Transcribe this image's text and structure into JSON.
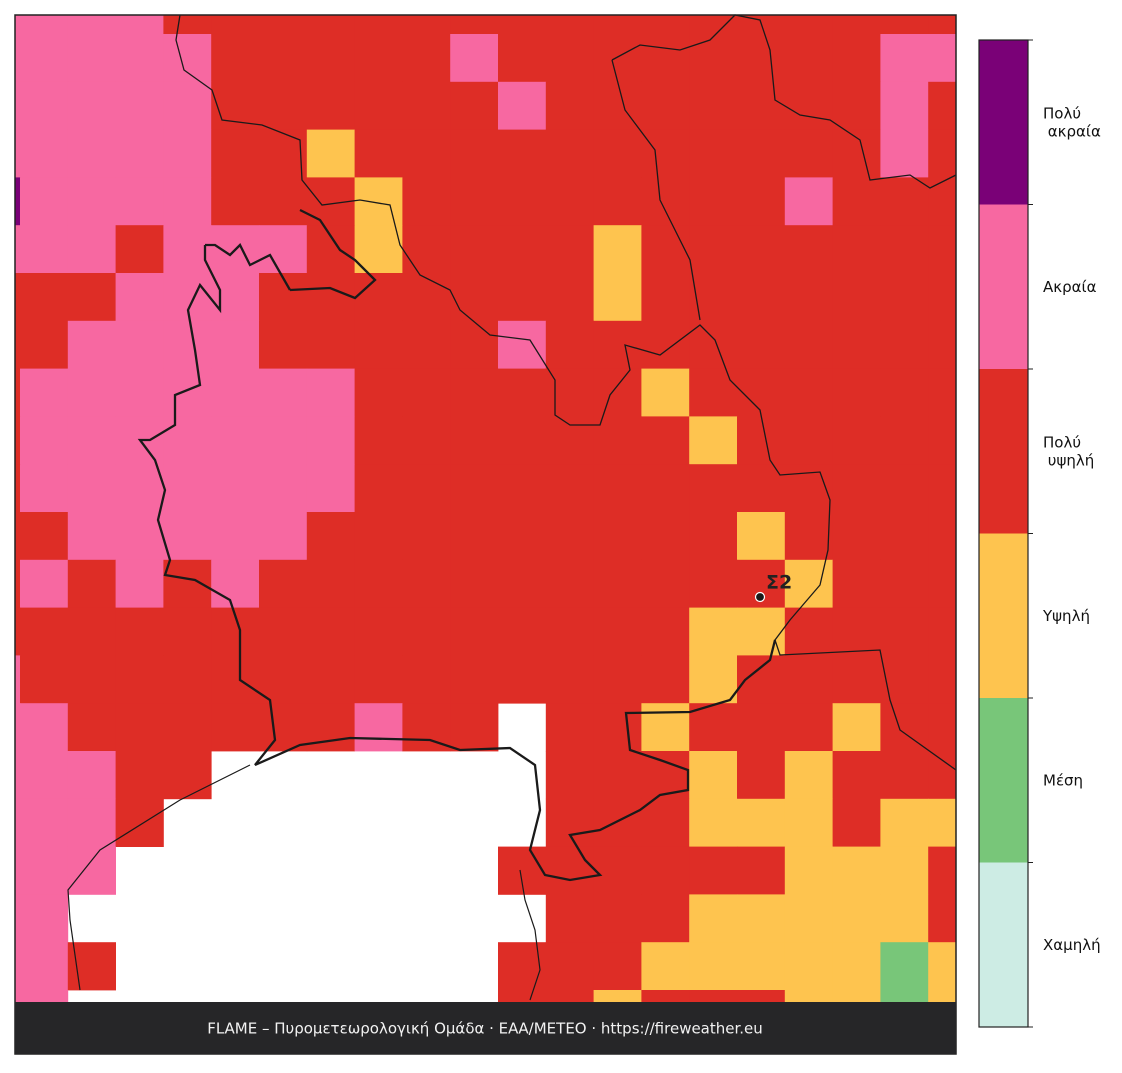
{
  "map": {
    "levels": [
      {
        "label": "Χαμηλή",
        "color": "#cdece4"
      },
      {
        "label": "Μέση",
        "color": "#78c679"
      },
      {
        "label": "Υψηλή",
        "color": "#fec44f"
      },
      {
        "label": "Πολύ υψηλή",
        "color": "#de2d26"
      },
      {
        "label": "Ακραία",
        "color": "#f768a1"
      },
      {
        "label": "Πολύ ακραία",
        "color": "#7a0177"
      }
    ],
    "grid": [
      [
        4,
        4,
        4,
        4,
        3,
        3,
        3,
        3,
        3,
        3,
        3,
        3,
        3,
        3,
        3,
        3,
        3,
        3,
        3,
        3,
        3
      ],
      [
        4,
        4,
        4,
        4,
        4,
        3,
        3,
        3,
        3,
        3,
        4,
        3,
        3,
        3,
        3,
        3,
        3,
        3,
        3,
        4,
        4
      ],
      [
        4,
        4,
        4,
        4,
        4,
        3,
        3,
        3,
        3,
        3,
        3,
        4,
        3,
        3,
        3,
        3,
        3,
        3,
        3,
        4,
        3
      ],
      [
        4,
        4,
        4,
        4,
        4,
        3,
        3,
        2,
        3,
        3,
        3,
        3,
        3,
        3,
        3,
        3,
        3,
        3,
        3,
        4,
        3
      ],
      [
        5,
        4,
        4,
        4,
        4,
        3,
        3,
        3,
        2,
        3,
        3,
        3,
        3,
        3,
        3,
        3,
        3,
        4,
        3,
        3,
        3
      ],
      [
        4,
        4,
        4,
        3,
        4,
        4,
        4,
        3,
        2,
        3,
        3,
        3,
        3,
        2,
        3,
        3,
        3,
        3,
        3,
        3,
        3
      ],
      [
        3,
        3,
        3,
        4,
        4,
        4,
        3,
        3,
        3,
        3,
        3,
        3,
        3,
        2,
        3,
        3,
        3,
        3,
        3,
        3,
        3
      ],
      [
        3,
        3,
        4,
        4,
        4,
        4,
        3,
        3,
        3,
        3,
        3,
        4,
        3,
        3,
        3,
        3,
        3,
        3,
        3,
        3,
        3
      ],
      [
        3,
        4,
        4,
        4,
        4,
        4,
        4,
        4,
        3,
        3,
        3,
        3,
        3,
        3,
        2,
        3,
        3,
        3,
        3,
        3,
        3
      ],
      [
        3,
        4,
        4,
        4,
        4,
        4,
        4,
        4,
        3,
        3,
        3,
        3,
        3,
        3,
        3,
        2,
        3,
        3,
        3,
        3,
        3
      ],
      [
        3,
        4,
        4,
        4,
        4,
        4,
        4,
        4,
        3,
        3,
        3,
        3,
        3,
        3,
        3,
        3,
        3,
        3,
        3,
        3,
        3
      ],
      [
        3,
        3,
        4,
        4,
        4,
        4,
        4,
        3,
        3,
        3,
        3,
        3,
        3,
        3,
        3,
        3,
        2,
        3,
        3,
        3,
        3
      ],
      [
        3,
        4,
        3,
        4,
        3,
        4,
        3,
        3,
        3,
        3,
        3,
        3,
        3,
        3,
        3,
        3,
        3,
        2,
        3,
        3,
        3
      ],
      [
        3,
        3,
        3,
        3,
        3,
        3,
        3,
        3,
        3,
        3,
        3,
        3,
        3,
        3,
        3,
        2,
        2,
        3,
        3,
        3,
        3
      ],
      [
        4,
        3,
        3,
        3,
        3,
        3,
        3,
        3,
        3,
        3,
        3,
        3,
        3,
        3,
        3,
        2,
        3,
        3,
        3,
        3,
        3
      ],
      [
        4,
        4,
        3,
        3,
        3,
        3,
        3,
        3,
        4,
        3,
        3,
        null,
        3,
        3,
        2,
        3,
        3,
        3,
        2,
        3,
        3
      ],
      [
        4,
        4,
        4,
        3,
        3,
        null,
        null,
        null,
        null,
        null,
        null,
        null,
        3,
        3,
        3,
        2,
        3,
        2,
        3,
        3,
        3
      ],
      [
        4,
        4,
        4,
        3,
        null,
        null,
        null,
        null,
        null,
        null,
        null,
        null,
        3,
        3,
        3,
        2,
        2,
        2,
        3,
        2,
        2
      ],
      [
        4,
        4,
        4,
        null,
        null,
        null,
        null,
        null,
        null,
        null,
        null,
        3,
        3,
        3,
        3,
        3,
        3,
        2,
        2,
        2,
        3
      ],
      [
        4,
        4,
        null,
        null,
        null,
        null,
        null,
        null,
        null,
        null,
        null,
        null,
        3,
        3,
        3,
        2,
        2,
        2,
        2,
        2,
        3
      ],
      [
        4,
        4,
        3,
        null,
        null,
        null,
        null,
        null,
        null,
        null,
        null,
        3,
        3,
        3,
        2,
        2,
        2,
        2,
        2,
        1,
        2
      ],
      [
        4,
        4,
        null,
        null,
        null,
        null,
        null,
        null,
        null,
        null,
        null,
        3,
        3,
        2,
        3,
        3,
        3,
        2,
        2,
        1,
        2
      ]
    ],
    "station": "Σ2",
    "footer": "FLAME – Πυρομετεωρολογική Ομάδα · ΕΑΑ/METEO · https://fireweather.eu"
  }
}
